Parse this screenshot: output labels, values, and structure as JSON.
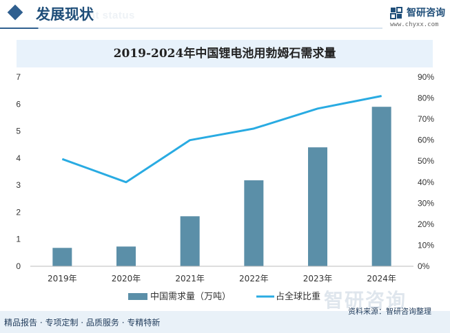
{
  "header": {
    "section_title": "发展现状",
    "section_subtitle": "ent status",
    "logo_name": "智研咨询",
    "logo_url": "www.chyxx.com"
  },
  "chart_data": {
    "type": "bar",
    "title": "2019-2024年中国锂电池用勃姆石需求量",
    "categories": [
      "2019年",
      "2020年",
      "2021年",
      "2022年",
      "2023年",
      "2024年"
    ],
    "series": [
      {
        "name": "中国需求量（万吨）",
        "type": "bar",
        "axis": "left",
        "color": "#5b8fa8",
        "values": [
          0.68,
          0.73,
          1.85,
          3.18,
          4.4,
          5.9
        ]
      },
      {
        "name": "占全球比重",
        "type": "line",
        "axis": "right",
        "color": "#29abe2",
        "values": [
          51,
          40,
          60,
          65.5,
          75,
          81
        ]
      }
    ],
    "y_left": {
      "min": 0,
      "max": 7,
      "ticks": [
        "0",
        "1",
        "2",
        "3",
        "4",
        "5",
        "6",
        "7"
      ]
    },
    "y_right": {
      "min": 0,
      "max": 90,
      "ticks": [
        "0%",
        "10%",
        "20%",
        "30%",
        "40%",
        "50%",
        "60%",
        "70%",
        "80%",
        "90%"
      ]
    },
    "grid": false,
    "legend_position": "bottom"
  },
  "footer": {
    "slogan": "精品报告 · 专项定制 · 品质服务 · 专精特新",
    "source": "资料来源：智研咨询整理",
    "watermark": "智研咨询"
  }
}
